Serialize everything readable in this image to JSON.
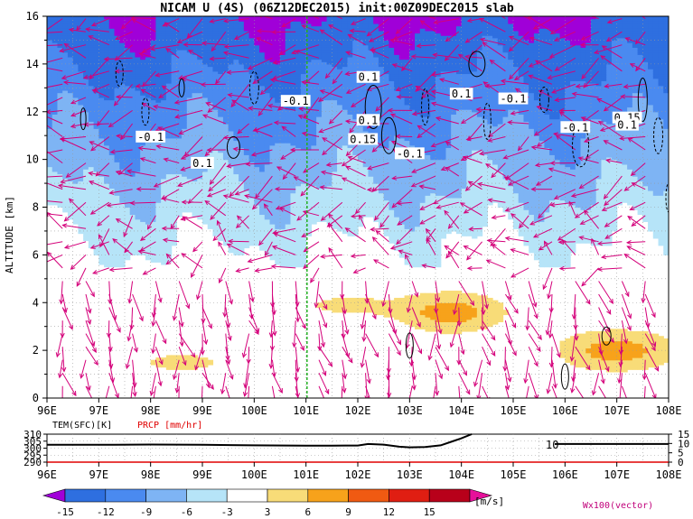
{
  "title": "NICAM U (4S) (06Z12DEC2015) init:00Z09DEC2015 slab",
  "chart_data": [
    {
      "type": "heatmap",
      "ylabel": "ALTITUDE [km]",
      "x_ticks": [
        "96E",
        "97E",
        "98E",
        "99E",
        "100E",
        "101E",
        "102E",
        "103E",
        "104E",
        "105E",
        "106E",
        "107E",
        "108E"
      ],
      "xlim": [
        96,
        108
      ],
      "y_ticks": [
        "0",
        "2",
        "4",
        "6",
        "8",
        "10",
        "12",
        "14",
        "16"
      ],
      "ylim": [
        0,
        16
      ],
      "contour_labels": [
        {
          "text": "0.1",
          "x": 102.2,
          "y": 13.4
        },
        {
          "text": "-0.1",
          "x": 100.8,
          "y": 12.4
        },
        {
          "text": "0.1",
          "x": 104.0,
          "y": 12.7
        },
        {
          "text": "-0.1",
          "x": 105.0,
          "y": 12.5
        },
        {
          "text": "0.1",
          "x": 102.2,
          "y": 11.6
        },
        {
          "text": "-0.1",
          "x": 98.0,
          "y": 10.9
        },
        {
          "text": "0.15",
          "x": 102.1,
          "y": 10.8
        },
        {
          "text": "-0.1",
          "x": 106.2,
          "y": 11.3
        },
        {
          "text": "0.15",
          "x": 107.2,
          "y": 11.7
        },
        {
          "text": "0.1",
          "x": 107.2,
          "y": 11.4
        },
        {
          "text": "0.1",
          "x": 99.0,
          "y": 9.8
        },
        {
          "text": "-0.1",
          "x": 103.0,
          "y": 10.2
        }
      ],
      "shading_bands": [
        {
          "u": -15,
          "y_range": [
            14.5,
            16
          ]
        },
        {
          "u": -12,
          "y_range": [
            12.5,
            14.5
          ]
        },
        {
          "u": -9,
          "y_range": [
            10.5,
            12.5
          ]
        },
        {
          "u": -6,
          "y_range": [
            7.0,
            10.5
          ]
        },
        {
          "u": -3,
          "y_range": [
            5.5,
            7.0
          ]
        }
      ]
    },
    {
      "type": "line",
      "ylabel_left": "TEM(SFC)[K]",
      "ylabel_right": "PRCP [mm/hr]",
      "left_ticks": [
        "310",
        "305",
        "300",
        "295",
        "290"
      ],
      "right_ticks": [
        "15",
        "10",
        "5",
        "0"
      ],
      "x_ticks": [
        "96E",
        "97E",
        "98E",
        "99E",
        "100E",
        "101E",
        "102E",
        "103E",
        "104E",
        "105E",
        "106E",
        "107E",
        "108E"
      ],
      "series": [
        {
          "name": "TEM(SFC)[K]",
          "x": [
            96,
            97,
            98,
            99,
            100,
            101,
            101.5,
            102,
            102.2,
            102.5,
            102.8,
            103,
            103.3,
            103.6,
            103.8,
            104,
            104.2
          ],
          "y": [
            302.4,
            302.4,
            302.6,
            302.4,
            302.0,
            301.8,
            301.8,
            301.9,
            303.0,
            302.5,
            301.0,
            300.6,
            300.8,
            302.0,
            304.5,
            307.0,
            310.0
          ]
        },
        {
          "name": "TEM(SFC)[K]",
          "x": [
            105.8,
            106.0,
            106.3,
            107,
            108
          ],
          "y": [
            303.0,
            303.0,
            303.0,
            303.0,
            303.0
          ]
        },
        {
          "name": "PRCP [mm/hr]",
          "x": [
            96,
            108
          ],
          "y": [
            0,
            0
          ]
        }
      ],
      "annotation": {
        "text": "10",
        "x": 105.8,
        "y": 304
      }
    }
  ],
  "colorbar": {
    "ticks": [
      "-15",
      "-12",
      "-9",
      "-6",
      "-3",
      "3",
      "6",
      "9",
      "12",
      "15"
    ],
    "unit": "[m/s]",
    "colors": [
      "#a000d8",
      "#2e6fe0",
      "#4a8af0",
      "#7eb4f4",
      "#b6e4f8",
      "#ffffff",
      "#f8dc78",
      "#f7a21b",
      "#f05a12",
      "#e01e12",
      "#b8001a",
      "#e6109a"
    ]
  },
  "vector_label": "Wx100(vector)",
  "colors": {
    "vector": "#d4007a",
    "contour": "#000000",
    "meridian": "#22b022",
    "prcp": "#e00000",
    "grid": "#9a9a9a"
  }
}
